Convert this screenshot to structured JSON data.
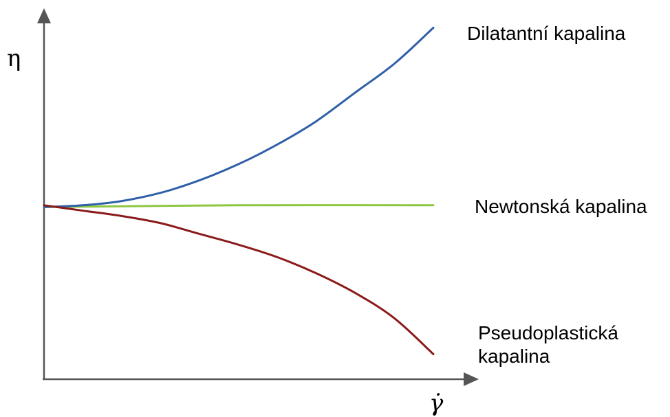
{
  "chart_data": {
    "type": "line",
    "title": "",
    "ylabel": "η",
    "xlabel": "γ̇",
    "xlim": [
      0,
      1
    ],
    "ylim": [
      0,
      1
    ],
    "grid": false,
    "legend": "none",
    "series": [
      {
        "name": "Dilatantní kapalina",
        "color": "#2e5fa8",
        "x": [
          0,
          0.1,
          0.2,
          0.3,
          0.4,
          0.5,
          0.6,
          0.7,
          0.8,
          0.9,
          1.0
        ],
        "y": [
          0.48,
          0.485,
          0.497,
          0.52,
          0.555,
          0.6,
          0.655,
          0.72,
          0.8,
          0.88,
          0.98
        ]
      },
      {
        "name": "Newtonská kapalina",
        "color": "#8dc63f",
        "x": [
          0,
          0.5,
          1.0
        ],
        "y": [
          0.48,
          0.485,
          0.485
        ]
      },
      {
        "name": "",
        "name_lines": [
          "Pseudoplastická",
          "kapalina"
        ],
        "color": "#8b1a1a",
        "x": [
          0,
          0.1,
          0.2,
          0.3,
          0.4,
          0.5,
          0.6,
          0.7,
          0.8,
          0.9,
          1.0
        ],
        "y": [
          0.485,
          0.47,
          0.455,
          0.435,
          0.405,
          0.375,
          0.34,
          0.295,
          0.24,
          0.17,
          0.07
        ]
      }
    ]
  }
}
